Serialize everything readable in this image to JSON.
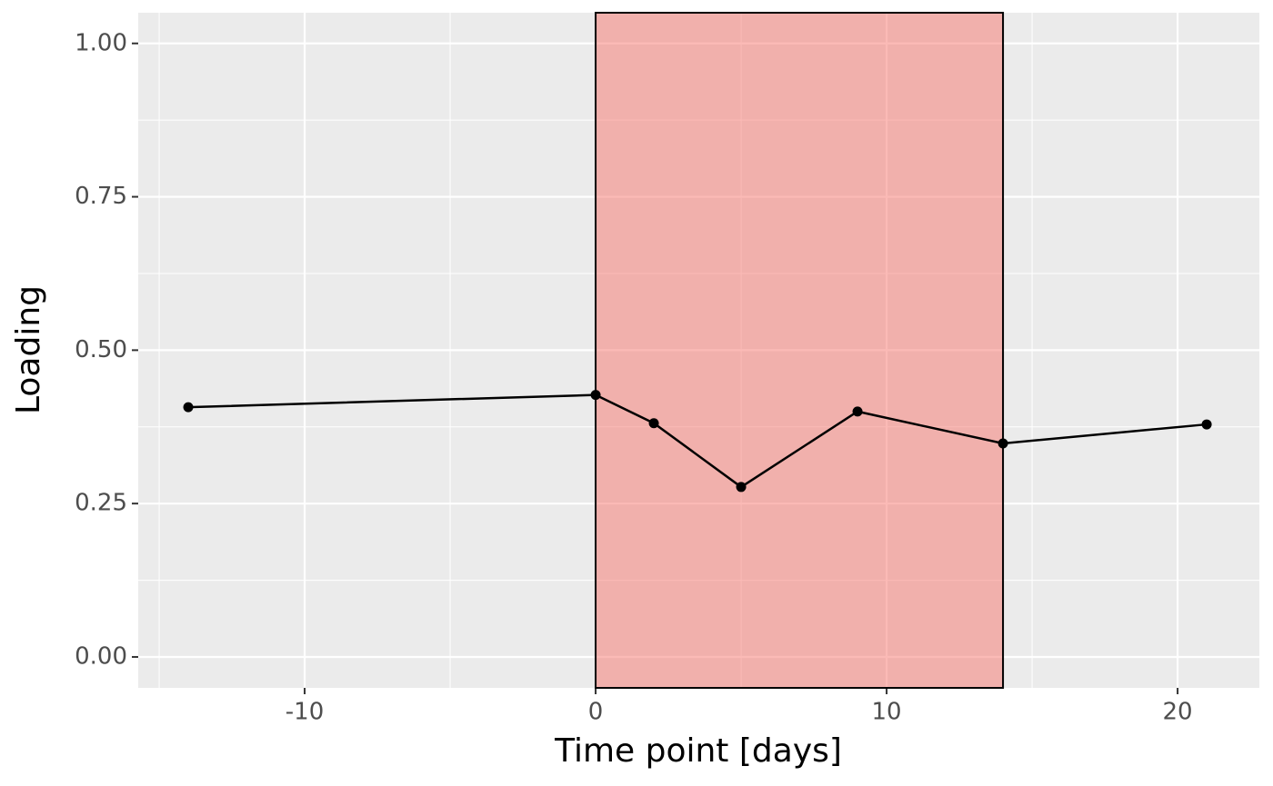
{
  "chart_data": {
    "type": "line",
    "x_label": "Time point [days]",
    "y_label": "Loading",
    "x": [
      -14,
      0,
      2,
      5,
      9,
      14,
      21
    ],
    "values": [
      0.407,
      0.427,
      0.381,
      0.277,
      0.4,
      0.348,
      0.379
    ],
    "color": "#000000",
    "xlim": [
      -15.72,
      22.81
    ],
    "xticks": [
      -10,
      0,
      10,
      20
    ],
    "x_minor_breaks": [
      -15,
      -5,
      5,
      15
    ],
    "ylim": [
      -0.0504,
      1.05
    ],
    "yticks": [
      {
        "value": 0,
        "label": "0.00"
      },
      {
        "value": 0.25,
        "label": "0.25"
      },
      {
        "value": 0.5,
        "label": "0.50"
      },
      {
        "value": 0.75,
        "label": "0.75"
      },
      {
        "value": 1,
        "label": "1.00"
      }
    ],
    "y_minor_breaks": [
      0.125,
      0.375,
      0.625,
      0.875
    ],
    "highlight": {
      "xmin": 0,
      "xmax": 14,
      "color": "#f8766d"
    },
    "grid": true
  }
}
